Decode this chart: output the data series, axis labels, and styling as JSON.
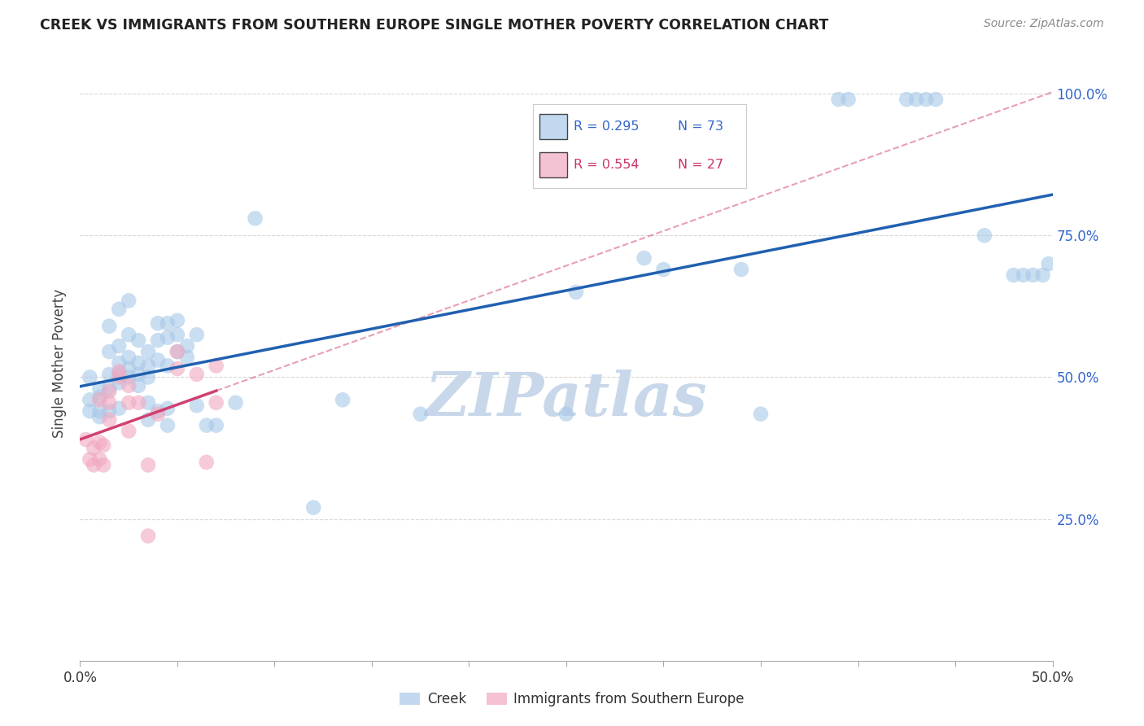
{
  "title": "CREEK VS IMMIGRANTS FROM SOUTHERN EUROPE SINGLE MOTHER POVERTY CORRELATION CHART",
  "source": "Source: ZipAtlas.com",
  "ylabel": "Single Mother Poverty",
  "legend_blue": {
    "R": "0.295",
    "N": "73",
    "label": "Creek"
  },
  "legend_pink": {
    "R": "0.554",
    "N": "27",
    "label": "Immigrants from Southern Europe"
  },
  "background_color": "#ffffff",
  "blue_color": "#a8c8e8",
  "pink_color": "#f0a8c0",
  "blue_line_color": "#2060b0",
  "pink_line_color": "#d04070",
  "blue_scatter_x": [
    0.5,
    0.5,
    0.5,
    1.0,
    1.0,
    1.0,
    1.0,
    1.5,
    1.5,
    1.5,
    1.5,
    1.5,
    2.0,
    2.0,
    2.0,
    2.0,
    2.0,
    2.0,
    2.5,
    2.5,
    2.5,
    2.5,
    2.5,
    3.0,
    3.0,
    3.0,
    3.0,
    3.5,
    3.5,
    3.5,
    3.5,
    3.5,
    4.0,
    4.0,
    4.0,
    4.0,
    4.5,
    4.5,
    4.5,
    4.5,
    4.5,
    5.0,
    5.0,
    5.0,
    5.5,
    5.5,
    6.0,
    6.0,
    6.5,
    7.0,
    8.0,
    9.0,
    12.0,
    13.5,
    17.5,
    25.0,
    25.5,
    29.0,
    30.0,
    34.0,
    35.0,
    39.0,
    39.5,
    42.5,
    43.0,
    43.5,
    44.0,
    46.5,
    48.0,
    48.5,
    49.0,
    49.5,
    49.8
  ],
  "blue_scatter_y": [
    44.0,
    46.0,
    50.0,
    48.0,
    46.5,
    44.0,
    43.0,
    59.0,
    54.5,
    50.5,
    48.0,
    44.0,
    62.0,
    55.5,
    52.5,
    50.5,
    49.0,
    44.5,
    63.5,
    57.5,
    53.5,
    51.5,
    50.0,
    56.5,
    52.5,
    50.5,
    48.5,
    54.5,
    52.0,
    50.0,
    45.5,
    42.5,
    59.5,
    56.5,
    53.0,
    44.0,
    59.5,
    57.0,
    52.0,
    44.5,
    41.5,
    60.0,
    57.5,
    54.5,
    55.5,
    53.5,
    57.5,
    45.0,
    41.5,
    41.5,
    45.5,
    78.0,
    27.0,
    46.0,
    43.5,
    43.5,
    65.0,
    71.0,
    69.0,
    69.0,
    43.5,
    99.0,
    99.0,
    99.0,
    99.0,
    99.0,
    99.0,
    75.0,
    68.0,
    68.0,
    68.0,
    68.0,
    70.0
  ],
  "pink_scatter_x": [
    0.3,
    0.5,
    0.7,
    0.7,
    1.0,
    1.0,
    1.0,
    1.2,
    1.2,
    1.5,
    1.5,
    1.5,
    2.0,
    2.0,
    2.5,
    2.5,
    2.5,
    3.0,
    3.5,
    3.5,
    4.0,
    5.0,
    5.0,
    6.0,
    6.5,
    7.0,
    7.0
  ],
  "pink_scatter_y": [
    39.0,
    35.5,
    37.5,
    34.5,
    46.0,
    38.5,
    35.5,
    38.0,
    34.5,
    47.5,
    45.5,
    42.5,
    50.0,
    51.0,
    48.5,
    45.5,
    40.5,
    45.5,
    34.5,
    22.0,
    43.5,
    54.5,
    51.5,
    50.5,
    35.0,
    45.5,
    52.0
  ],
  "xlim": [
    0.0,
    50.0
  ],
  "ylim": [
    0.0,
    105.0
  ],
  "y_tick_vals": [
    25.0,
    50.0,
    75.0,
    100.0
  ],
  "y_tick_labels": [
    "25.0%",
    "50.0%",
    "75.0%",
    "100.0%"
  ],
  "watermark": "ZIPatlas",
  "watermark_color": "#c8d8ea"
}
